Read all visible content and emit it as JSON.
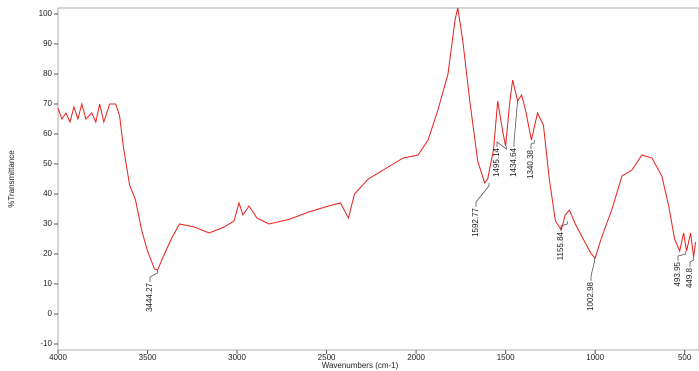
{
  "chart_data": {
    "type": "line",
    "x_label": "Wavenumbers (cm-1)",
    "y_label": "%Transmittance",
    "x": [
      4000,
      3978,
      3956,
      3933,
      3911,
      3889,
      3867,
      3844,
      3811,
      3789,
      3767,
      3744,
      3711,
      3678,
      3656,
      3633,
      3600,
      3567,
      3533,
      3500,
      3461,
      3444,
      3406,
      3367,
      3322,
      3239,
      3156,
      3072,
      3017,
      2989,
      2967,
      2933,
      2889,
      2822,
      2711,
      2600,
      2489,
      2422,
      2378,
      2344,
      2267,
      2156,
      2072,
      1989,
      1933,
      1878,
      1822,
      1783,
      1767,
      1739,
      1700,
      1656,
      1617,
      1600,
      1567,
      1544,
      1517,
      1500,
      1478,
      1461,
      1433,
      1411,
      1389,
      1356,
      1322,
      1289,
      1256,
      1222,
      1189,
      1167,
      1144,
      1111,
      1067,
      1022,
      1000,
      967,
      906,
      850,
      794,
      739,
      683,
      628,
      589,
      556,
      528,
      506,
      489,
      467,
      450,
      439
    ],
    "values": [
      68.7,
      65,
      67,
      64,
      69,
      65,
      70,
      65,
      67,
      64,
      70,
      64,
      70,
      70,
      66,
      55,
      43,
      38,
      28,
      21,
      15,
      14.7,
      20,
      25,
      30,
      29,
      27,
      29,
      31,
      37,
      33,
      36,
      32,
      30,
      31.5,
      34,
      36,
      37,
      32,
      40,
      45,
      49,
      52,
      53,
      58,
      68,
      80,
      98,
      102,
      91,
      71,
      51,
      43.7,
      45,
      55,
      71,
      61,
      56,
      70,
      78,
      71,
      73,
      68,
      58,
      67,
      63,
      45,
      31,
      28,
      33,
      34.7,
      30,
      25,
      20,
      18.7,
      25,
      35,
      46,
      48,
      53,
      52,
      46,
      36,
      25,
      21,
      27,
      21,
      27,
      19,
      24
    ],
    "color": "#e8201c",
    "xlim": [
      4000,
      420
    ],
    "ylim": [
      -12,
      102
    ],
    "xticks": [
      4000,
      3500,
      3000,
      2500,
      2000,
      1500,
      1000,
      500
    ],
    "yticks": [
      -10,
      0,
      10,
      20,
      30,
      40,
      50,
      60,
      70,
      80,
      90,
      100
    ],
    "annotations": [
      {
        "x": 3444.27,
        "y": 14.7
      },
      {
        "x": 1592.77,
        "y": 43.7
      },
      {
        "x": 1495.14,
        "y": 56
      },
      {
        "x": 1434.64,
        "y": 71
      },
      {
        "x": 1340.38,
        "y": 58
      },
      {
        "x": 1155.84,
        "y": 31
      },
      {
        "x": 1002.98,
        "y": 18.7
      },
      {
        "x": 493.95,
        "y": 21
      },
      {
        "x": 449.8,
        "y": 19
      }
    ]
  }
}
